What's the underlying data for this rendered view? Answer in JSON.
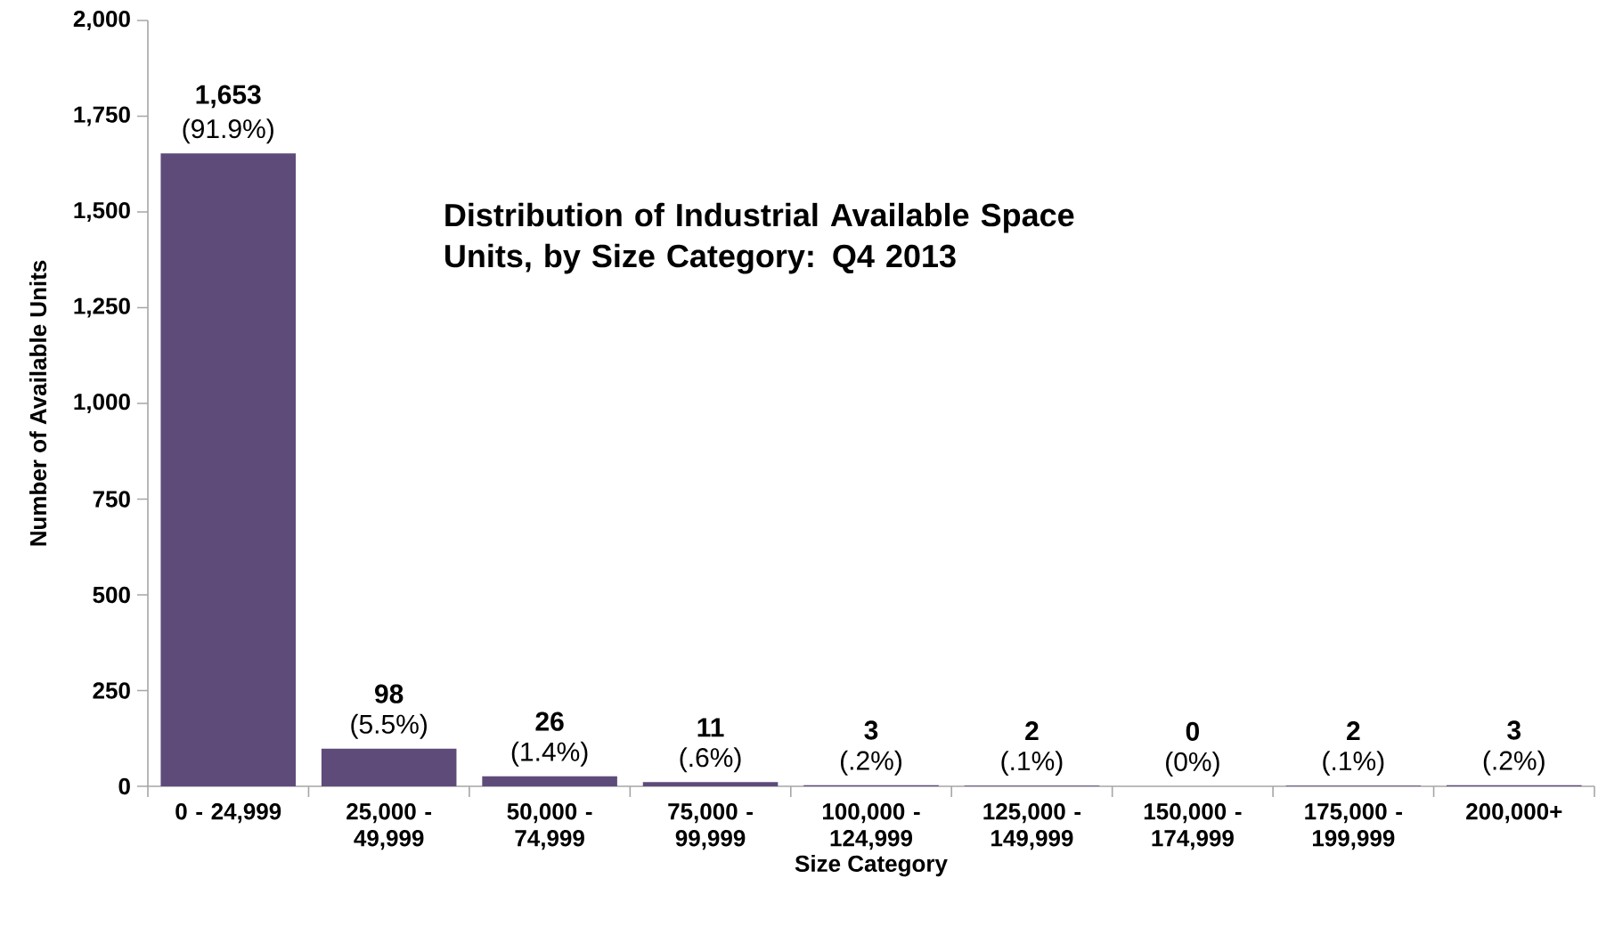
{
  "chart_data": {
    "type": "bar",
    "title": "Distribution of Industrial Available Space Units, by Size Category: Q4 2013",
    "xlabel": "Size Category",
    "ylabel": "Number of Available Units",
    "categories": [
      "0 - 24,999",
      "25,000 - 49,999",
      "50,000 - 74,999",
      "75,000 - 99,999",
      "100,000 - 124,999",
      "125,000 - 149,999",
      "150,000 - 174,999",
      "175,000 - 199,999",
      "200,000+"
    ],
    "values": [
      1653,
      98,
      26,
      11,
      3,
      2,
      0,
      2,
      3
    ],
    "value_labels": [
      "1,653",
      "98",
      "26",
      "11",
      "3",
      "2",
      "0",
      "2",
      "3"
    ],
    "annotations": [
      {
        "text": "(91.9%)",
        "x": "0 - 24,999",
        "y": 1653
      },
      {
        "text": "(5.5%)",
        "x": "25,000 - 49,999",
        "y": 98
      },
      {
        "text": "(1.4%)",
        "x": "50,000 - 74,999",
        "y": 26
      },
      {
        "text": "(.6%)",
        "x": "75,000 - 99,999",
        "y": 11
      },
      {
        "text": "(.2%)",
        "x": "100,000 - 124,999",
        "y": 3
      },
      {
        "text": "(.1%)",
        "x": "125,000 - 149,999",
        "y": 2
      },
      {
        "text": "(0%)",
        "x": "150,000 - 174,999",
        "y": 0
      },
      {
        "text": "(.1%)",
        "x": "175,000 - 199,999",
        "y": 2
      },
      {
        "text": "(.2%)",
        "x": "200,000+",
        "y": 3
      }
    ],
    "color": "#5e4b7a",
    "ylim": [
      0,
      2000
    ],
    "yticks": [
      0,
      250,
      500,
      750,
      {
        "value": 1000,
        "label": "1,000"
      },
      {
        "value": 1250,
        "label": "1,250"
      },
      {
        "value": 1500,
        "label": "1,500"
      },
      {
        "value": 1750,
        "label": "1,750"
      },
      {
        "value": 2000,
        "label": "2,000"
      }
    ],
    "grid": false
  }
}
